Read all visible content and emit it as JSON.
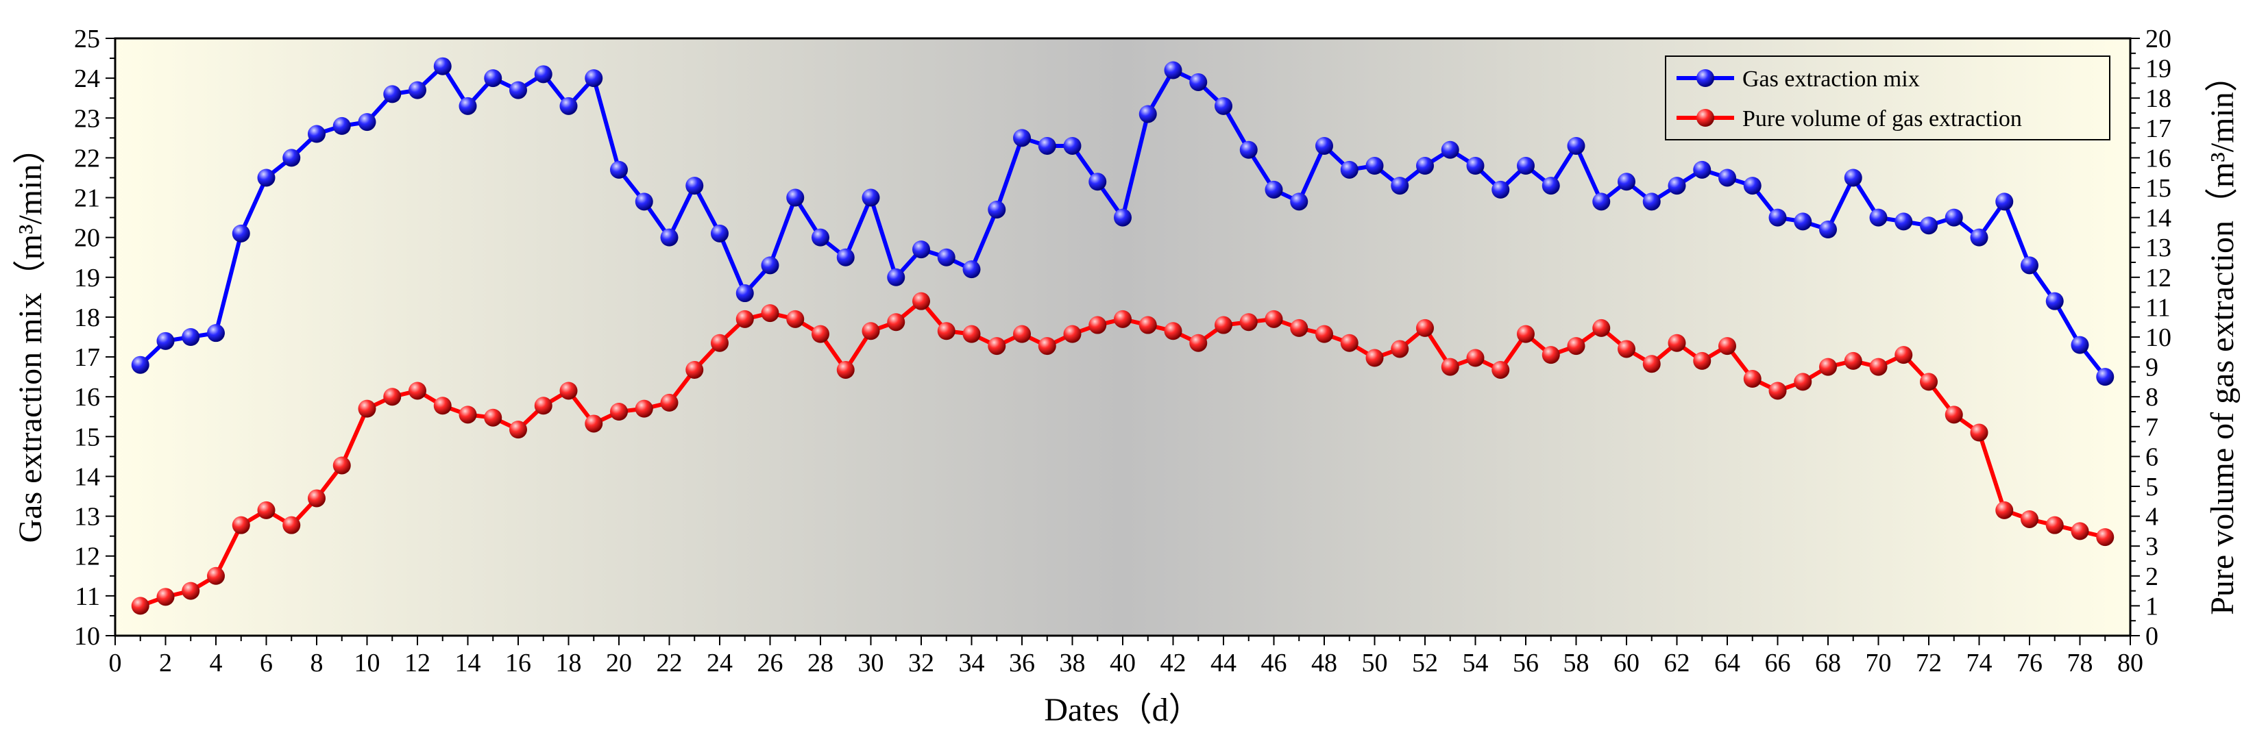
{
  "chart_data": {
    "type": "line",
    "xlabel": "Dates（d）",
    "ylabel_left": "Gas extraction mix（m³/min）",
    "ylabel_right": "Pure volume of gas extraction（m³/min）",
    "xlim": [
      0,
      80
    ],
    "ylim_left": [
      10,
      25
    ],
    "ylim_right": [
      0,
      20
    ],
    "x_ticks": [
      0,
      2,
      4,
      6,
      8,
      10,
      12,
      14,
      16,
      18,
      20,
      22,
      24,
      26,
      28,
      30,
      32,
      34,
      36,
      38,
      40,
      42,
      44,
      46,
      48,
      50,
      52,
      54,
      56,
      58,
      60,
      62,
      64,
      66,
      68,
      70,
      72,
      74,
      76,
      78,
      80
    ],
    "y_ticks_left": [
      10,
      11,
      12,
      13,
      14,
      15,
      16,
      17,
      18,
      19,
      20,
      21,
      22,
      23,
      24,
      25
    ],
    "y_ticks_right": [
      0,
      1,
      2,
      3,
      4,
      5,
      6,
      7,
      8,
      9,
      10,
      11,
      12,
      13,
      14,
      15,
      16,
      17,
      18,
      19,
      20
    ],
    "legend_position": "top-right",
    "background": "gradient",
    "x": [
      1,
      2,
      3,
      4,
      5,
      6,
      7,
      8,
      9,
      10,
      11,
      12,
      13,
      14,
      15,
      16,
      17,
      18,
      19,
      20,
      21,
      22,
      23,
      24,
      25,
      26,
      27,
      28,
      29,
      30,
      31,
      32,
      33,
      34,
      35,
      36,
      37,
      38,
      39,
      40,
      41,
      42,
      43,
      44,
      45,
      46,
      47,
      48,
      49,
      50,
      51,
      52,
      53,
      54,
      55,
      56,
      57,
      58,
      59,
      60,
      61,
      62,
      63,
      64,
      65,
      66,
      67,
      68,
      69,
      70,
      71,
      72,
      73,
      74,
      75,
      76,
      77,
      78,
      79
    ],
    "series": [
      {
        "name": "Gas extraction mix",
        "axis": "left",
        "color": "#0000ff",
        "values": [
          16.8,
          17.4,
          17.5,
          17.6,
          20.1,
          21.5,
          22.0,
          22.6,
          22.8,
          22.9,
          23.6,
          23.7,
          24.3,
          23.3,
          24.0,
          23.7,
          24.1,
          23.3,
          24.0,
          21.7,
          20.9,
          20.0,
          21.3,
          20.1,
          18.6,
          19.3,
          21.0,
          20.0,
          19.5,
          21.0,
          19.0,
          19.7,
          19.5,
          19.2,
          20.7,
          22.5,
          22.3,
          22.3,
          21.4,
          20.5,
          23.1,
          24.2,
          23.9,
          23.3,
          22.2,
          21.2,
          20.9,
          22.3,
          21.7,
          21.8,
          21.3,
          21.8,
          22.2,
          21.8,
          21.2,
          21.8,
          21.3,
          22.3,
          20.9,
          21.4,
          20.9,
          21.3,
          21.7,
          21.5,
          21.3,
          20.5,
          20.4,
          20.2,
          21.5,
          20.5,
          20.4,
          20.3,
          20.5,
          20.0,
          20.9,
          19.3,
          18.4,
          17.3,
          16.5
        ]
      },
      {
        "name": "Pure volume of gas extraction",
        "axis": "right",
        "color": "#ff0000",
        "values": [
          1.0,
          1.3,
          1.5,
          2.0,
          3.7,
          4.2,
          3.7,
          4.6,
          5.7,
          7.6,
          8.0,
          8.2,
          7.7,
          7.4,
          7.3,
          6.9,
          7.7,
          8.2,
          7.1,
          7.5,
          7.6,
          7.8,
          8.9,
          9.8,
          10.6,
          10.8,
          10.6,
          10.1,
          8.9,
          10.2,
          10.5,
          11.2,
          10.2,
          10.1,
          9.7,
          10.1,
          9.7,
          10.1,
          10.4,
          10.6,
          10.4,
          10.2,
          9.8,
          10.4,
          10.5,
          10.6,
          10.3,
          10.1,
          9.8,
          9.3,
          9.6,
          10.3,
          9.0,
          9.3,
          8.9,
          10.1,
          9.4,
          9.7,
          10.3,
          9.6,
          9.1,
          9.8,
          9.2,
          9.7,
          8.6,
          8.2,
          8.5,
          9.0,
          9.2,
          9.0,
          9.4,
          8.5,
          7.4,
          6.8,
          4.2,
          3.9,
          3.7,
          3.5,
          3.3
        ]
      }
    ]
  }
}
